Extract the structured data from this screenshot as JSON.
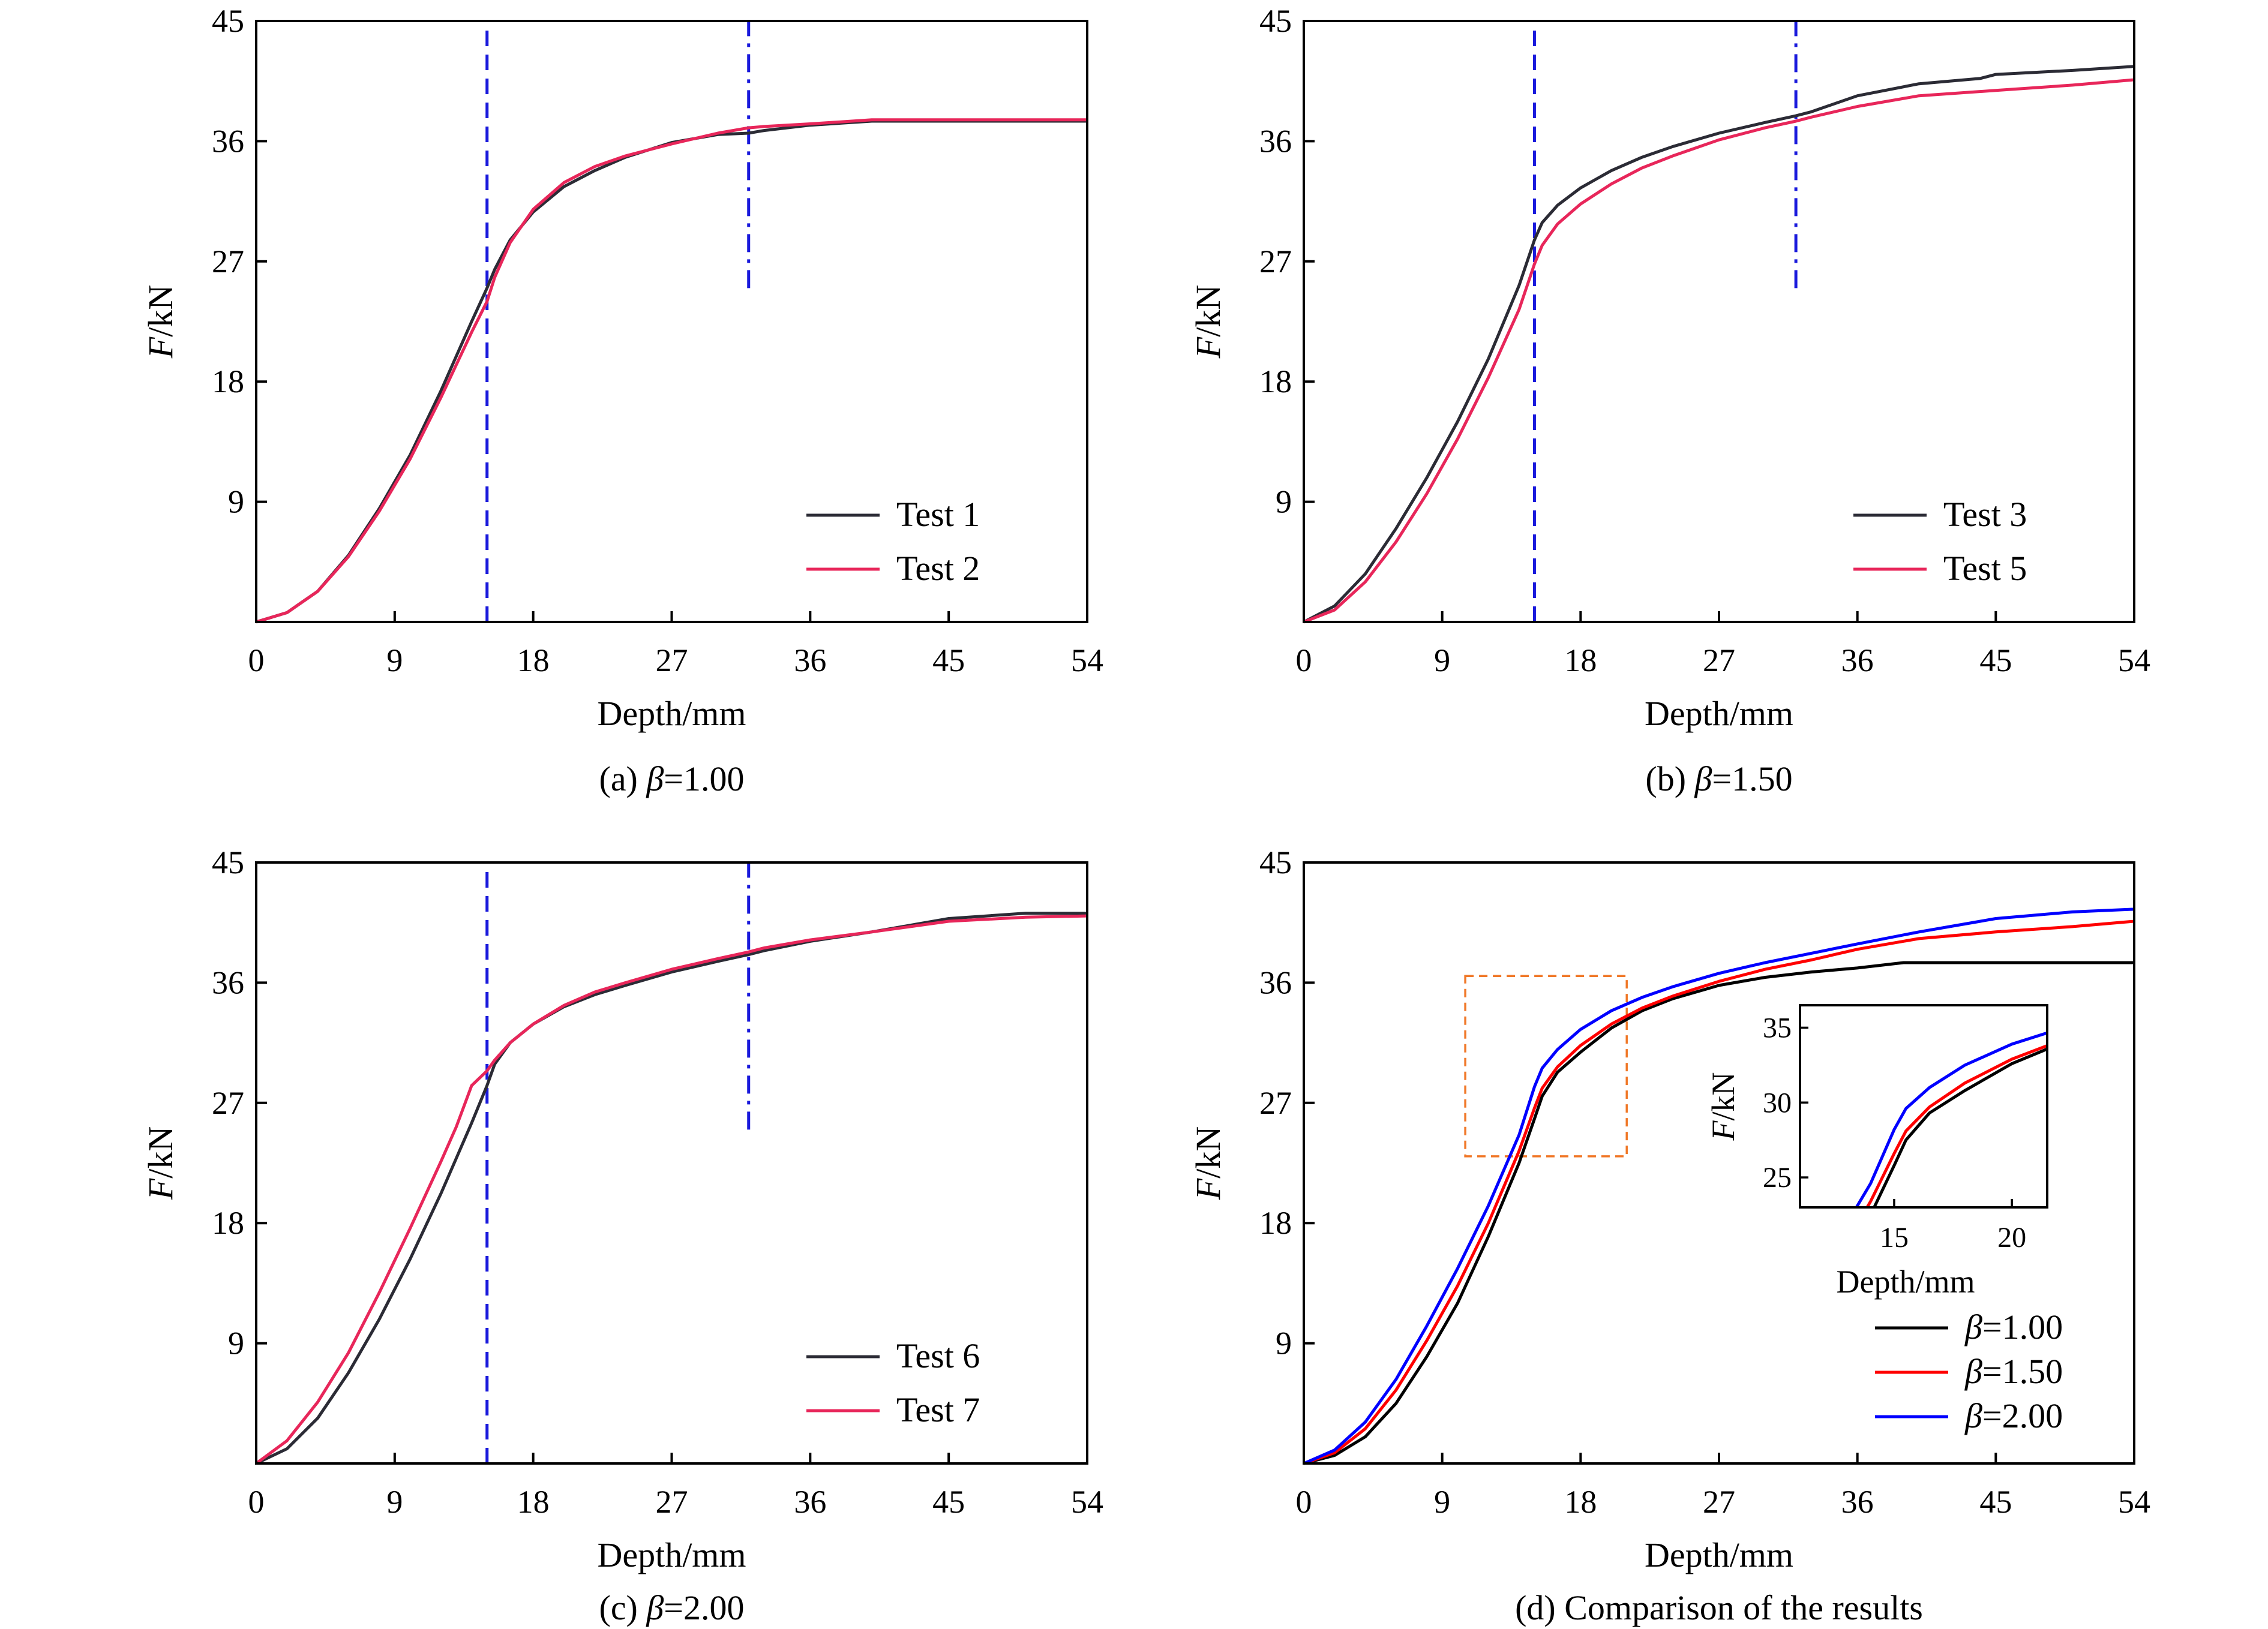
{
  "colors": {
    "test_black": "#2b2b35",
    "test_red": "#e8265a",
    "beta100": "#000000",
    "beta150": "#ff0000",
    "beta200": "#0000ff",
    "vline": "#1a1adc",
    "zoom_box": "#f07828"
  },
  "chart_data": [
    {
      "type": "line",
      "caption_prefix": "(a) ",
      "caption_symbol": "β",
      "caption_suffix": "=1.00",
      "xlabel": "Depth/mm",
      "ylabel_symbol": "F",
      "ylabel_unit": "/kN",
      "xlim": [
        0,
        54
      ],
      "ylim": [
        0,
        45
      ],
      "xticks": [
        "0",
        "9",
        "18",
        "27",
        "36",
        "45",
        "54"
      ],
      "yticks": [
        "9",
        "18",
        "27",
        "36",
        "45"
      ],
      "vlines": [
        {
          "x": 15.0,
          "style": "dashed",
          "y_from": 0,
          "y_to": 45
        },
        {
          "x": 32.0,
          "style": "dashdot",
          "y_from": 25,
          "y_to": 45
        }
      ],
      "legend": "lower-right",
      "series": [
        {
          "name": "Test 1",
          "color": "#2b2b35",
          "x": [
            0,
            2,
            4,
            6,
            8,
            10,
            12,
            14,
            15,
            15.5,
            16.5,
            18,
            20,
            22,
            24,
            27,
            30,
            32,
            33,
            36,
            40,
            45,
            50,
            54
          ],
          "y": [
            0,
            0.7,
            2.3,
            5,
            8.5,
            12.5,
            17.3,
            22.5,
            25,
            26.4,
            28.6,
            30.7,
            32.6,
            33.8,
            34.8,
            35.9,
            36.5,
            36.6,
            36.8,
            37.2,
            37.5,
            37.5,
            37.5,
            37.5
          ]
        },
        {
          "name": "Test 2",
          "color": "#e8265a",
          "x": [
            0,
            2,
            4,
            6,
            8,
            10,
            12,
            14,
            15,
            15.5,
            16.5,
            18,
            20,
            22,
            24,
            27,
            30,
            32,
            33,
            36,
            40,
            45,
            50,
            54
          ],
          "y": [
            0,
            0.7,
            2.3,
            4.9,
            8.3,
            12.2,
            16.8,
            21.7,
            24,
            25.8,
            28.4,
            30.9,
            32.9,
            34.1,
            34.9,
            35.8,
            36.6,
            37,
            37.1,
            37.3,
            37.6,
            37.6,
            37.6,
            37.6
          ]
        }
      ]
    },
    {
      "type": "line",
      "caption_prefix": "(b) ",
      "caption_symbol": "β",
      "caption_suffix": "=1.50",
      "xlabel": "Depth/mm",
      "ylabel_symbol": "F",
      "ylabel_unit": "/kN",
      "xlim": [
        0,
        54
      ],
      "ylim": [
        0,
        45
      ],
      "xticks": [
        "0",
        "9",
        "18",
        "27",
        "36",
        "45",
        "54"
      ],
      "yticks": [
        "9",
        "18",
        "27",
        "36",
        "45"
      ],
      "vlines": [
        {
          "x": 15.0,
          "style": "dashed",
          "y_from": 0,
          "y_to": 45
        },
        {
          "x": 32.0,
          "style": "dashdot",
          "y_from": 25,
          "y_to": 45
        }
      ],
      "legend": "lower-right",
      "series": [
        {
          "name": "Test 3",
          "color": "#2b2b35",
          "x": [
            0,
            2,
            4,
            6,
            8,
            10,
            12,
            14,
            15,
            15.5,
            16.5,
            18,
            20,
            22,
            24,
            27,
            30,
            32,
            33,
            36,
            40,
            44,
            45,
            50,
            54
          ],
          "y": [
            0,
            1.2,
            3.6,
            7,
            10.8,
            15,
            19.7,
            25.2,
            28.6,
            29.9,
            31.2,
            32.5,
            33.8,
            34.8,
            35.6,
            36.6,
            37.4,
            37.9,
            38.2,
            39.4,
            40.3,
            40.7,
            41,
            41.3,
            41.6
          ]
        },
        {
          "name": "Test 5",
          "color": "#e8265a",
          "x": [
            0,
            2,
            4,
            6,
            8,
            10,
            12,
            14,
            15,
            15.5,
            16.5,
            18,
            20,
            22,
            24,
            27,
            30,
            32,
            33,
            36,
            40,
            45,
            50,
            54
          ],
          "y": [
            0,
            0.9,
            3,
            6,
            9.6,
            13.7,
            18.3,
            23.4,
            26.8,
            28.2,
            29.8,
            31.3,
            32.8,
            34,
            34.9,
            36.1,
            37,
            37.5,
            37.8,
            38.6,
            39.4,
            39.8,
            40.2,
            40.6
          ]
        }
      ]
    },
    {
      "type": "line",
      "caption_prefix": "(c) ",
      "caption_symbol": "β",
      "caption_suffix": "=2.00",
      "xlabel": "Depth/mm",
      "ylabel_symbol": "F",
      "ylabel_unit": "/kN",
      "xlim": [
        0,
        54
      ],
      "ylim": [
        0,
        45
      ],
      "xticks": [
        "0",
        "9",
        "18",
        "27",
        "36",
        "45",
        "54"
      ],
      "yticks": [
        "9",
        "18",
        "27",
        "36",
        "45"
      ],
      "vlines": [
        {
          "x": 15.0,
          "style": "dashed",
          "y_from": 0,
          "y_to": 45
        },
        {
          "x": 32.0,
          "style": "dashdot",
          "y_from": 25,
          "y_to": 45
        }
      ],
      "legend": "lower-right",
      "series": [
        {
          "name": "Test 6",
          "color": "#2b2b35",
          "x": [
            0,
            2,
            4,
            6,
            8,
            10,
            12,
            14,
            15,
            15.5,
            16.5,
            18,
            20,
            22,
            24,
            27,
            30,
            32,
            33,
            36,
            40,
            45,
            50,
            54
          ],
          "y": [
            0,
            1.1,
            3.4,
            6.8,
            10.8,
            15.3,
            20.2,
            25.5,
            28.3,
            29.9,
            31.5,
            32.9,
            34.2,
            35.1,
            35.8,
            36.8,
            37.6,
            38.1,
            38.4,
            39.1,
            39.8,
            40.8,
            41.2,
            41.2
          ]
        },
        {
          "name": "Test 7",
          "color": "#e8265a",
          "x": [
            0,
            2,
            4,
            6,
            8,
            10,
            12,
            13,
            14,
            15,
            15.5,
            16.5,
            18,
            20,
            22,
            24,
            27,
            30,
            32,
            33,
            36,
            40,
            45,
            50,
            54
          ],
          "y": [
            0,
            1.7,
            4.6,
            8.3,
            12.8,
            17.6,
            22.6,
            25.2,
            28.3,
            29.4,
            30.2,
            31.5,
            32.9,
            34.3,
            35.3,
            36,
            37,
            37.8,
            38.3,
            38.6,
            39.2,
            39.8,
            40.6,
            40.9,
            41
          ]
        }
      ]
    },
    {
      "type": "line",
      "caption_prefix": "(d) ",
      "caption_symbol": "",
      "caption_suffix": "Comparison of the results",
      "xlabel": "Depth/mm",
      "ylabel_symbol": "F",
      "ylabel_unit": "/kN",
      "xlim": [
        0,
        54
      ],
      "ylim": [
        0,
        45
      ],
      "xticks": [
        "0",
        "9",
        "18",
        "27",
        "36",
        "45",
        "54"
      ],
      "yticks": [
        "9",
        "18",
        "27",
        "36",
        "45"
      ],
      "vlines": [],
      "legend": "lower-right",
      "zoom_box": {
        "x": [
          10.5,
          21
        ],
        "y": [
          23,
          36.5
        ]
      },
      "series": [
        {
          "name": "=1.00",
          "symbol": "β",
          "color": "#000000",
          "x": [
            0,
            2,
            4,
            6,
            8,
            10,
            12,
            14,
            15,
            15.5,
            16.5,
            18,
            20,
            22,
            24,
            27,
            30,
            33,
            36,
            39,
            40,
            45,
            50,
            54
          ],
          "y": [
            0,
            0.6,
            2,
            4.5,
            8,
            12,
            17,
            22.5,
            25.8,
            27.5,
            29.3,
            30.8,
            32.6,
            33.9,
            34.8,
            35.8,
            36.4,
            36.8,
            37.1,
            37.5,
            37.5,
            37.5,
            37.5,
            37.5
          ]
        },
        {
          "name": "=1.50",
          "symbol": "β",
          "color": "#ff0000",
          "x": [
            0,
            2,
            4,
            6,
            8,
            10,
            12,
            14,
            15,
            15.5,
            16.5,
            18,
            20,
            22,
            24,
            27,
            30,
            33,
            36,
            40,
            45,
            50,
            54
          ],
          "y": [
            0,
            0.8,
            2.6,
            5.5,
            9.2,
            13.3,
            18,
            23.4,
            26.6,
            28.1,
            29.7,
            31.3,
            32.9,
            34.1,
            35,
            36.1,
            37,
            37.7,
            38.5,
            39.3,
            39.8,
            40.2,
            40.6
          ]
        },
        {
          "name": "=2.00",
          "symbol": "β",
          "color": "#0000ff",
          "x": [
            0,
            2,
            4,
            6,
            8,
            10,
            12,
            14,
            15,
            15.5,
            16.5,
            18,
            20,
            22,
            24,
            27,
            30,
            33,
            36,
            40,
            44,
            45,
            50,
            54
          ],
          "y": [
            0,
            1,
            3.1,
            6.3,
            10.3,
            14.6,
            19.3,
            24.6,
            28.2,
            29.6,
            31,
            32.5,
            33.9,
            34.9,
            35.7,
            36.7,
            37.5,
            38.2,
            38.9,
            39.8,
            40.6,
            40.8,
            41.3,
            41.5
          ]
        }
      ],
      "inset": {
        "xlabel": "Depth/mm",
        "ylabel_symbol": "F",
        "ylabel_unit": "/kN",
        "xlim": [
          11,
          21.5
        ],
        "ylim": [
          23,
          36.5
        ],
        "xticks": [
          "15",
          "20"
        ],
        "yticks": [
          "25",
          "30",
          "35"
        ]
      }
    }
  ]
}
